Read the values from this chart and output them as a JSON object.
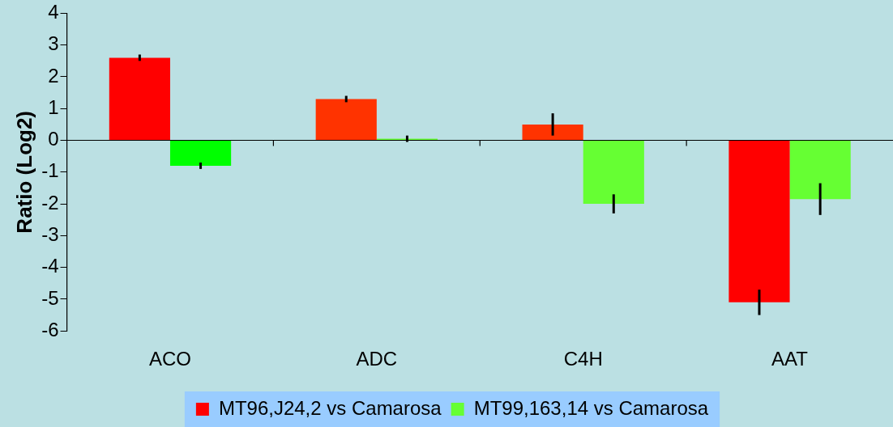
{
  "chart_data": {
    "type": "bar",
    "ylabel": "Ratio (Log2)",
    "categories": [
      "ACO",
      "ADC",
      "C4H",
      "AAT"
    ],
    "series": [
      {
        "name": "MT96,J24,2 vs Camarosa",
        "color": "#ff0000",
        "colors": [
          "#ff0000",
          "#ff3300",
          "#ff3300",
          "#ff0000"
        ],
        "values": [
          2.6,
          1.3,
          0.5,
          -5.1
        ],
        "errors": [
          0.1,
          0.1,
          0.35,
          0.4
        ]
      },
      {
        "name": "MT99,163,14 vs Camarosa",
        "color": "#66ff33",
        "colors": [
          "#00ff00",
          "#66ff33",
          "#66ff33",
          "#66ff33"
        ],
        "values": [
          -0.8,
          0.05,
          -2,
          -1.85
        ],
        "errors": [
          0.1,
          0.1,
          0.3,
          0.5
        ]
      }
    ],
    "ref_lines": [
      {
        "axis": "y",
        "value": 0,
        "color": "#000000"
      }
    ],
    "ylim": [
      -6,
      4
    ],
    "yticks": [
      -6,
      -5,
      -4,
      -3,
      -2,
      -1,
      0,
      1,
      2,
      3,
      4
    ],
    "grid": false,
    "legend": "bottom"
  }
}
